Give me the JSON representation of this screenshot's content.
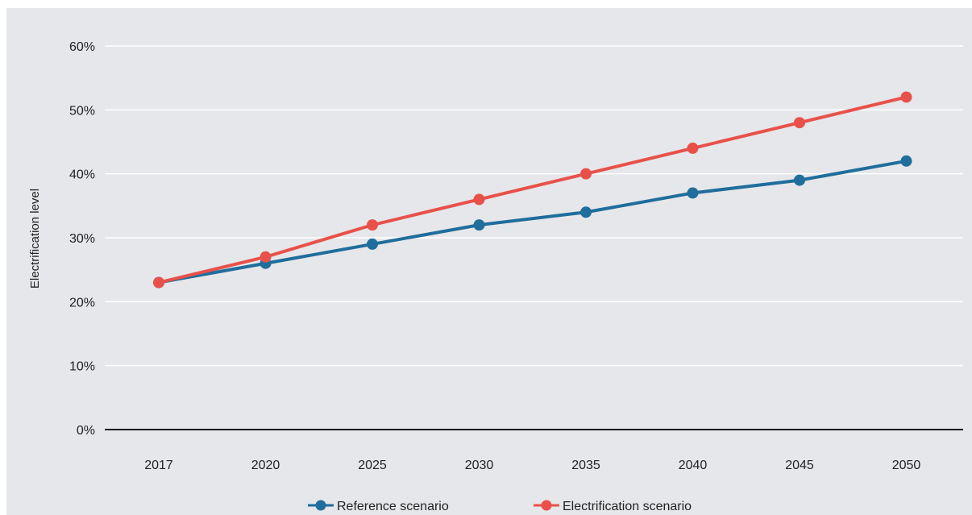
{
  "chart_data": {
    "type": "line",
    "categories": [
      "2017",
      "2020",
      "2025",
      "2030",
      "2035",
      "2040",
      "2045",
      "2050"
    ],
    "series": [
      {
        "name": "Reference scenario",
        "values": [
          23,
          26,
          29,
          32,
          34,
          37,
          39,
          42
        ],
        "color": "#1f6e9c"
      },
      {
        "name": "Electrification scenario",
        "values": [
          23,
          27,
          32,
          36,
          40,
          44,
          48,
          52
        ],
        "color": "#e8514a"
      }
    ],
    "ylabel": "Electrification level",
    "ylim": [
      0,
      60
    ],
    "yticks": [
      "0%",
      "10%",
      "20%",
      "30%",
      "40%",
      "50%",
      "60%"
    ],
    "grid": true,
    "legend": "bottom-center"
  }
}
